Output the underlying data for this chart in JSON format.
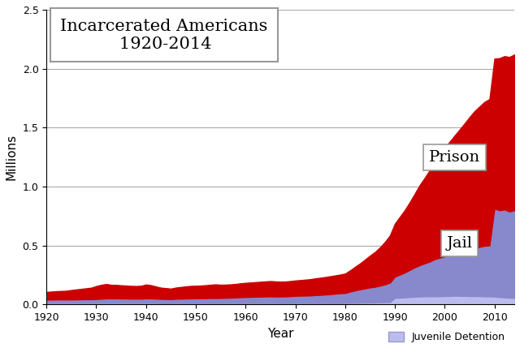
{
  "title": "Incarcerated Americans",
  "subtitle": "1920-2014",
  "xlabel": "Year",
  "ylabel": "Millions",
  "xlim": [
    1920,
    2014
  ],
  "ylim": [
    0,
    2.5
  ],
  "yticks": [
    0,
    0.5,
    1.0,
    1.5,
    2.0,
    2.5
  ],
  "xticks": [
    1920,
    1930,
    1940,
    1950,
    1960,
    1970,
    1980,
    1990,
    2000,
    2010
  ],
  "color_prison": "#cc0000",
  "color_jail": "#8888cc",
  "color_juvenile": "#bbbbee",
  "years": [
    1920,
    1921,
    1922,
    1923,
    1924,
    1925,
    1926,
    1927,
    1928,
    1929,
    1930,
    1931,
    1932,
    1933,
    1934,
    1935,
    1936,
    1937,
    1938,
    1939,
    1940,
    1941,
    1942,
    1943,
    1944,
    1945,
    1946,
    1947,
    1948,
    1949,
    1950,
    1951,
    1952,
    1953,
    1954,
    1955,
    1956,
    1957,
    1958,
    1959,
    1960,
    1961,
    1962,
    1963,
    1964,
    1965,
    1966,
    1967,
    1968,
    1969,
    1970,
    1971,
    1972,
    1973,
    1974,
    1975,
    1976,
    1977,
    1978,
    1979,
    1980,
    1981,
    1982,
    1983,
    1984,
    1985,
    1986,
    1987,
    1988,
    1989,
    1990,
    1991,
    1992,
    1993,
    1994,
    1995,
    1996,
    1997,
    1998,
    1999,
    2000,
    2001,
    2002,
    2003,
    2004,
    2005,
    2006,
    2007,
    2008,
    2009,
    2010,
    2011,
    2012,
    2013,
    2014
  ],
  "juvenile": [
    0.014,
    0.014,
    0.014,
    0.014,
    0.014,
    0.014,
    0.014,
    0.014,
    0.014,
    0.014,
    0.014,
    0.014,
    0.014,
    0.014,
    0.014,
    0.014,
    0.014,
    0.014,
    0.014,
    0.014,
    0.014,
    0.014,
    0.013,
    0.012,
    0.012,
    0.012,
    0.013,
    0.013,
    0.013,
    0.013,
    0.013,
    0.013,
    0.013,
    0.013,
    0.013,
    0.013,
    0.013,
    0.013,
    0.013,
    0.013,
    0.013,
    0.013,
    0.013,
    0.013,
    0.013,
    0.013,
    0.013,
    0.013,
    0.013,
    0.013,
    0.013,
    0.013,
    0.013,
    0.013,
    0.013,
    0.013,
    0.013,
    0.013,
    0.013,
    0.013,
    0.013,
    0.014,
    0.014,
    0.015,
    0.016,
    0.017,
    0.018,
    0.019,
    0.02,
    0.021,
    0.057,
    0.058,
    0.06,
    0.064,
    0.066,
    0.068,
    0.07,
    0.069,
    0.071,
    0.07,
    0.072,
    0.073,
    0.075,
    0.074,
    0.073,
    0.072,
    0.072,
    0.071,
    0.07,
    0.069,
    0.067,
    0.064,
    0.061,
    0.058,
    0.056
  ],
  "jail": [
    0.028,
    0.028,
    0.029,
    0.029,
    0.029,
    0.029,
    0.03,
    0.03,
    0.031,
    0.031,
    0.033,
    0.035,
    0.038,
    0.038,
    0.038,
    0.037,
    0.037,
    0.036,
    0.036,
    0.036,
    0.038,
    0.038,
    0.037,
    0.036,
    0.035,
    0.034,
    0.036,
    0.037,
    0.038,
    0.039,
    0.04,
    0.041,
    0.041,
    0.042,
    0.042,
    0.043,
    0.044,
    0.045,
    0.047,
    0.049,
    0.051,
    0.052,
    0.053,
    0.054,
    0.055,
    0.056,
    0.055,
    0.055,
    0.056,
    0.058,
    0.061,
    0.062,
    0.063,
    0.064,
    0.067,
    0.069,
    0.072,
    0.075,
    0.079,
    0.083,
    0.085,
    0.096,
    0.106,
    0.114,
    0.121,
    0.128,
    0.133,
    0.141,
    0.151,
    0.165,
    0.18,
    0.196,
    0.212,
    0.23,
    0.25,
    0.266,
    0.28,
    0.296,
    0.314,
    0.327,
    0.338,
    0.348,
    0.358,
    0.37,
    0.383,
    0.398,
    0.408,
    0.418,
    0.428,
    0.433,
    0.748,
    0.735,
    0.745,
    0.731,
    0.744
  ],
  "prison": [
    0.065,
    0.068,
    0.07,
    0.072,
    0.074,
    0.08,
    0.084,
    0.089,
    0.093,
    0.098,
    0.11,
    0.118,
    0.122,
    0.115,
    0.115,
    0.112,
    0.11,
    0.108,
    0.107,
    0.109,
    0.118,
    0.112,
    0.103,
    0.095,
    0.092,
    0.089,
    0.095,
    0.099,
    0.103,
    0.106,
    0.106,
    0.107,
    0.11,
    0.113,
    0.116,
    0.112,
    0.112,
    0.113,
    0.115,
    0.118,
    0.12,
    0.122,
    0.124,
    0.126,
    0.128,
    0.13,
    0.128,
    0.126,
    0.126,
    0.128,
    0.13,
    0.132,
    0.135,
    0.138,
    0.142,
    0.145,
    0.148,
    0.152,
    0.155,
    0.158,
    0.165,
    0.18,
    0.2,
    0.22,
    0.245,
    0.27,
    0.295,
    0.325,
    0.36,
    0.4,
    0.45,
    0.49,
    0.53,
    0.575,
    0.625,
    0.68,
    0.725,
    0.775,
    0.825,
    0.87,
    0.92,
    0.96,
    1.0,
    1.04,
    1.08,
    1.12,
    1.16,
    1.19,
    1.22,
    1.24,
    1.27,
    1.29,
    1.3,
    1.31,
    1.32
  ],
  "background_color": "#ffffff",
  "grid_color": "#aaaaaa"
}
